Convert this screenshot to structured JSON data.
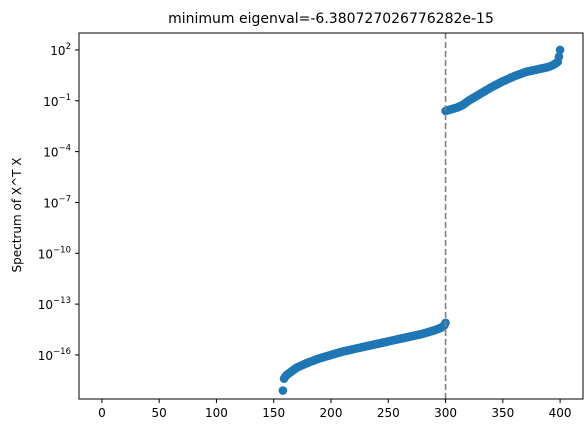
{
  "chart_data": {
    "type": "scatter",
    "title": "minimum eigenval=-6.380727026776282e-15",
    "xlabel": "",
    "ylabel": "Spectrum of X^T X",
    "xlim": [
      -20,
      420
    ],
    "ylim_log10": [
      -18.6,
      3.0
    ],
    "y_scale": "log",
    "x_ticks": [
      0,
      50,
      100,
      150,
      200,
      250,
      300,
      350,
      400
    ],
    "x_tick_labels": [
      "0",
      "50",
      "100",
      "150",
      "200",
      "250",
      "300",
      "350",
      "400"
    ],
    "y_tick_exponents": [
      2,
      -1,
      -4,
      -7,
      -10,
      -13,
      -16
    ],
    "y_tick_base": "10",
    "y_tick_labels": [
      "2",
      "−1",
      "−4",
      "−7",
      "−10",
      "−13",
      "−16"
    ],
    "vline": {
      "x": 300,
      "style": "dashed",
      "color": "#808080"
    },
    "marker_color": "#1f77b4",
    "grid": false,
    "series": [
      {
        "x_start": 158,
        "x_end": 300,
        "log10_anchors": [
          [
            158,
            -18.1
          ],
          [
            159,
            -17.4
          ],
          [
            161,
            -17.2
          ],
          [
            165,
            -17.0
          ],
          [
            170,
            -16.75
          ],
          [
            180,
            -16.45
          ],
          [
            190,
            -16.2
          ],
          [
            200,
            -16.0
          ],
          [
            210,
            -15.8
          ],
          [
            220,
            -15.65
          ],
          [
            230,
            -15.5
          ],
          [
            240,
            -15.35
          ],
          [
            250,
            -15.2
          ],
          [
            260,
            -15.05
          ],
          [
            270,
            -14.9
          ],
          [
            280,
            -14.75
          ],
          [
            290,
            -14.55
          ],
          [
            296,
            -14.4
          ],
          [
            299,
            -14.25
          ],
          [
            300,
            -14.1
          ]
        ]
      },
      {
        "x_start": 300,
        "x_end": 399,
        "log10_anchors": [
          [
            300,
            -1.6
          ],
          [
            305,
            -1.5
          ],
          [
            310,
            -1.4
          ],
          [
            315,
            -1.25
          ],
          [
            320,
            -1.0
          ],
          [
            330,
            -0.6
          ],
          [
            340,
            -0.2
          ],
          [
            350,
            0.15
          ],
          [
            360,
            0.45
          ],
          [
            370,
            0.7
          ],
          [
            380,
            0.85
          ],
          [
            390,
            1.0
          ],
          [
            395,
            1.15
          ],
          [
            398,
            1.3
          ],
          [
            399,
            1.6
          ]
        ]
      },
      {
        "x_start": 400,
        "x_end": 400,
        "log10_anchors": [
          [
            400,
            2.0
          ]
        ]
      }
    ]
  }
}
